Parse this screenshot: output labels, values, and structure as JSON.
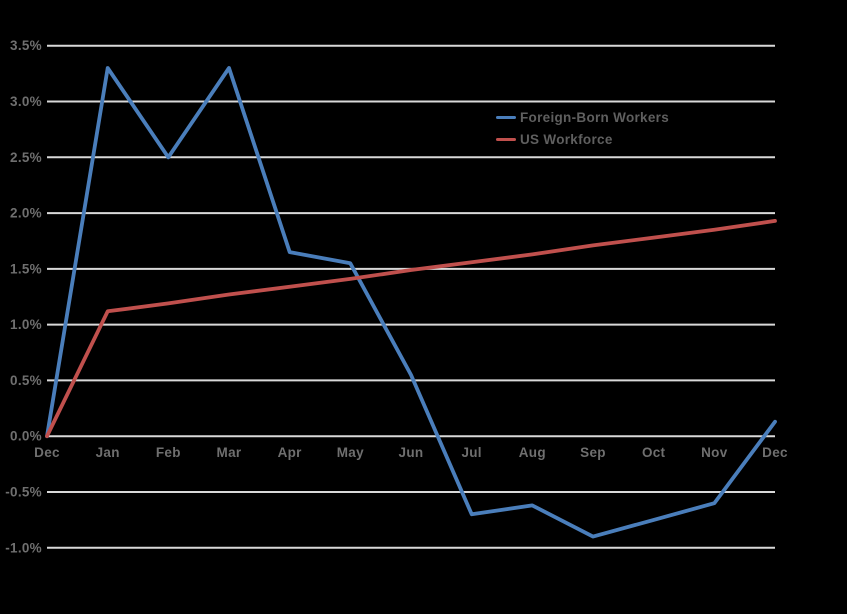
{
  "chart_data": {
    "type": "line",
    "title": "",
    "xlabel": "",
    "ylabel": "",
    "categories": [
      "Dec",
      "Jan",
      "Feb",
      "Mar",
      "Apr",
      "May",
      "Jun",
      "Jul",
      "Aug",
      "Sep",
      "Oct",
      "Nov",
      "Dec"
    ],
    "series": [
      {
        "name": "Foreign-Born Workers",
        "color": "#4a7ebb",
        "values": [
          0.0,
          3.3,
          2.5,
          3.3,
          1.65,
          1.55,
          0.55,
          -0.7,
          -0.62,
          -0.9,
          -0.75,
          -0.6,
          0.13
        ]
      },
      {
        "name": "US Workforce",
        "color": "#c0504d",
        "values": [
          0.0,
          1.12,
          1.19,
          1.27,
          1.34,
          1.41,
          1.49,
          1.56,
          1.63,
          1.71,
          1.78,
          1.85,
          1.93
        ]
      }
    ],
    "ylim": [
      -1.0,
      3.5
    ],
    "ytick_step": 0.5,
    "yticks": [
      {
        "v": 3.5,
        "label": "3.5%"
      },
      {
        "v": 3.0,
        "label": "3.0%"
      },
      {
        "v": 2.5,
        "label": "2.5%"
      },
      {
        "v": 2.0,
        "label": "2.0%"
      },
      {
        "v": 1.5,
        "label": "1.5%"
      },
      {
        "v": 1.0,
        "label": "1.0%"
      },
      {
        "v": 0.5,
        "label": "0.5%"
      },
      {
        "v": 0.0,
        "label": "0.0%"
      },
      {
        "v": -0.5,
        "label": "-0.5%"
      },
      {
        "v": -1.0,
        "label": "-1.0%"
      }
    ],
    "units": "percent",
    "grid": true,
    "legend_position": "inside-upper-right",
    "x_labels_at_zero_axis": true
  },
  "style": {
    "background": "#000000",
    "gridline_color": "#d9d9d9",
    "label_color": "#6f6f6f",
    "legend_text_color": "#5f5f5f"
  }
}
